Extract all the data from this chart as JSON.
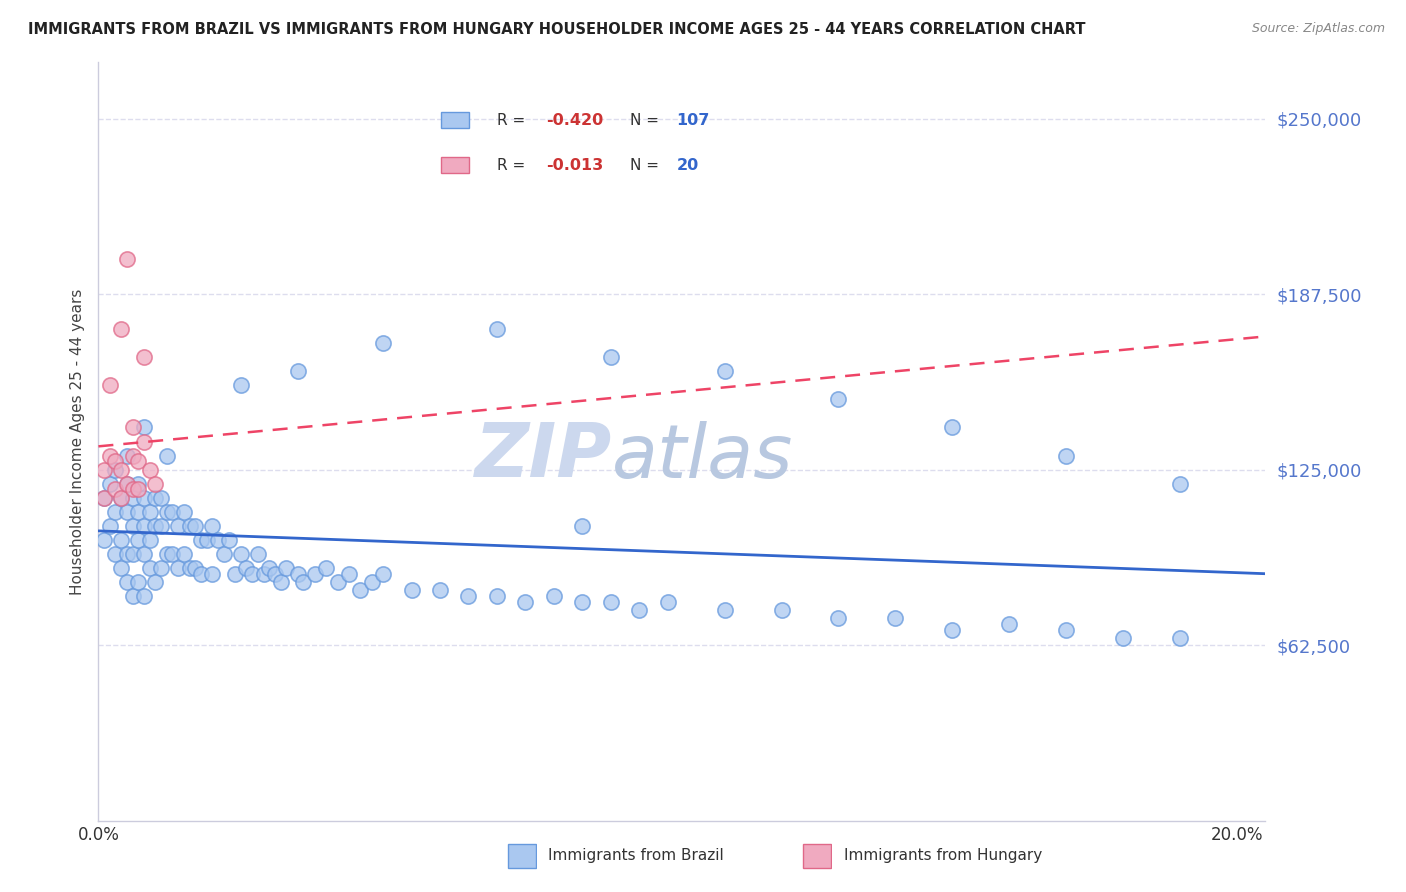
{
  "title": "IMMIGRANTS FROM BRAZIL VS IMMIGRANTS FROM HUNGARY HOUSEHOLDER INCOME AGES 25 - 44 YEARS CORRELATION CHART",
  "source": "Source: ZipAtlas.com",
  "ylabel": "Householder Income Ages 25 - 44 years",
  "y_tick_labels": [
    "$62,500",
    "$125,000",
    "$187,500",
    "$250,000"
  ],
  "y_tick_values": [
    62500,
    125000,
    187500,
    250000
  ],
  "ylim": [
    0,
    270000
  ],
  "xlim": [
    0.0,
    0.205
  ],
  "brazil_R": -0.42,
  "brazil_N": 107,
  "hungary_R": -0.013,
  "hungary_N": 20,
  "brazil_color": "#aac8f0",
  "brazil_edge": "#6699dd",
  "hungary_color": "#f0aac0",
  "hungary_edge": "#e06888",
  "brazil_line_color": "#3366cc",
  "hungary_line_color": "#ee4466",
  "watermark_zip": "ZIP",
  "watermark_atlas": "atlas",
  "watermark_color": "#ccd8ee",
  "legend_R_color": "#cc3333",
  "legend_N_color": "#3366cc",
  "background_color": "#ffffff",
  "grid_color": "#ddddee",
  "brazil_legend_label": "Immigrants from Brazil",
  "hungary_legend_label": "Immigrants from Hungary",
  "brazil_x": [
    0.001,
    0.001,
    0.002,
    0.002,
    0.003,
    0.003,
    0.003,
    0.004,
    0.004,
    0.004,
    0.005,
    0.005,
    0.005,
    0.005,
    0.006,
    0.006,
    0.006,
    0.006,
    0.007,
    0.007,
    0.007,
    0.007,
    0.008,
    0.008,
    0.008,
    0.008,
    0.009,
    0.009,
    0.009,
    0.01,
    0.01,
    0.01,
    0.011,
    0.011,
    0.011,
    0.012,
    0.012,
    0.013,
    0.013,
    0.014,
    0.014,
    0.015,
    0.015,
    0.016,
    0.016,
    0.017,
    0.017,
    0.018,
    0.018,
    0.019,
    0.02,
    0.02,
    0.021,
    0.022,
    0.023,
    0.024,
    0.025,
    0.026,
    0.027,
    0.028,
    0.029,
    0.03,
    0.031,
    0.032,
    0.033,
    0.035,
    0.036,
    0.038,
    0.04,
    0.042,
    0.044,
    0.046,
    0.048,
    0.05,
    0.055,
    0.06,
    0.065,
    0.07,
    0.075,
    0.08,
    0.085,
    0.09,
    0.095,
    0.1,
    0.11,
    0.12,
    0.13,
    0.14,
    0.15,
    0.16,
    0.17,
    0.18,
    0.19,
    0.005,
    0.008,
    0.012,
    0.025,
    0.035,
    0.05,
    0.07,
    0.09,
    0.11,
    0.13,
    0.15,
    0.17,
    0.19,
    0.085
  ],
  "brazil_y": [
    115000,
    100000,
    120000,
    105000,
    110000,
    95000,
    125000,
    115000,
    100000,
    90000,
    120000,
    110000,
    95000,
    85000,
    115000,
    105000,
    95000,
    80000,
    120000,
    110000,
    100000,
    85000,
    115000,
    105000,
    95000,
    80000,
    110000,
    100000,
    90000,
    115000,
    105000,
    85000,
    115000,
    105000,
    90000,
    110000,
    95000,
    110000,
    95000,
    105000,
    90000,
    110000,
    95000,
    105000,
    90000,
    105000,
    90000,
    100000,
    88000,
    100000,
    105000,
    88000,
    100000,
    95000,
    100000,
    88000,
    95000,
    90000,
    88000,
    95000,
    88000,
    90000,
    88000,
    85000,
    90000,
    88000,
    85000,
    88000,
    90000,
    85000,
    88000,
    82000,
    85000,
    88000,
    82000,
    82000,
    80000,
    80000,
    78000,
    80000,
    78000,
    78000,
    75000,
    78000,
    75000,
    75000,
    72000,
    72000,
    68000,
    70000,
    68000,
    65000,
    65000,
    130000,
    140000,
    130000,
    155000,
    160000,
    170000,
    175000,
    165000,
    160000,
    150000,
    140000,
    130000,
    120000,
    105000
  ],
  "hungary_x": [
    0.001,
    0.001,
    0.002,
    0.003,
    0.003,
    0.004,
    0.004,
    0.005,
    0.005,
    0.006,
    0.006,
    0.007,
    0.007,
    0.008,
    0.009,
    0.01,
    0.002,
    0.004,
    0.006,
    0.008
  ],
  "hungary_y": [
    125000,
    115000,
    130000,
    128000,
    118000,
    125000,
    115000,
    200000,
    120000,
    130000,
    118000,
    128000,
    118000,
    165000,
    125000,
    120000,
    155000,
    175000,
    140000,
    135000
  ]
}
